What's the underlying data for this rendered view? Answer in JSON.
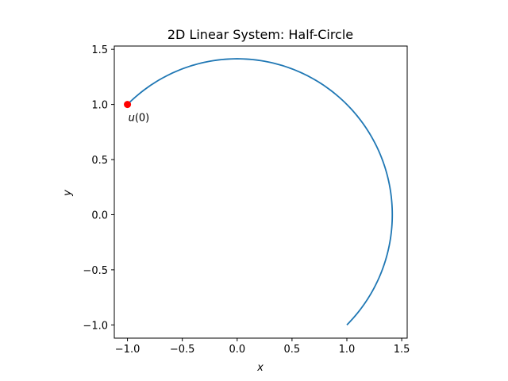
{
  "chart_data": {
    "type": "line",
    "title": "2D Linear System: Half-Circle",
    "xlabel": "x",
    "ylabel": "y",
    "xlim": [
      -1.12,
      1.55
    ],
    "ylim": [
      -1.12,
      1.53
    ],
    "xticks": [
      -1.0,
      -0.5,
      0.0,
      0.5,
      1.0,
      1.5
    ],
    "xtick_labels": [
      "−1.0",
      "−0.5",
      "0.0",
      "0.5",
      "1.0",
      "1.5"
    ],
    "yticks": [
      -1.0,
      -0.5,
      0.0,
      0.5,
      1.0,
      1.5
    ],
    "ytick_labels": [
      "−1.0",
      "−0.5",
      "0.0",
      "0.5",
      "1.0",
      "1.5"
    ],
    "grid": false,
    "series": [
      {
        "type": "curve",
        "color": "#1f77b4",
        "center": [
          0,
          0
        ],
        "radius": 1.4142,
        "start_point": [
          -1.0,
          1.0
        ],
        "end_point": [
          1.0,
          -1.0
        ],
        "direction": "clockwise"
      }
    ],
    "marker": {
      "x": -1.0,
      "y": 1.0,
      "color": "#ff0000",
      "label_prefix": "u",
      "label_suffix": "(0)"
    }
  }
}
